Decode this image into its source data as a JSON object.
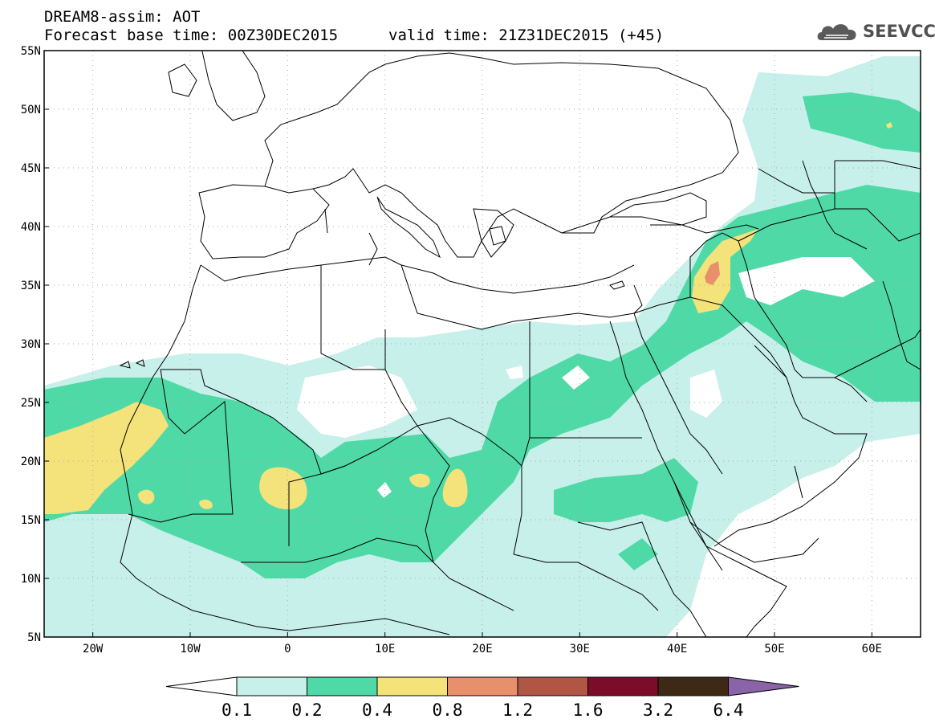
{
  "title": {
    "line1": "DREAM8-assim: AOT",
    "line2": "Forecast base time: 00Z30DEC2015",
    "valid": "valid time: 21Z31DEC2015 (+45)"
  },
  "logo": {
    "text": "SEEVCCC",
    "icon": "cloud-icon"
  },
  "map": {
    "lat_labels": [
      "55N",
      "50N",
      "45N",
      "40N",
      "35N",
      "30N",
      "25N",
      "20N",
      "15N",
      "10N",
      "5N"
    ],
    "lon_labels": [
      "20W",
      "10W",
      "0",
      "10E",
      "20E",
      "30E",
      "40E",
      "50E",
      "60E"
    ],
    "lat_range": [
      5,
      55
    ],
    "lon_range": [
      -25,
      65
    ],
    "grid": "dotted"
  },
  "colorbar": {
    "labels": [
      "0.1",
      "0.2",
      "0.4",
      "0.8",
      "1.2",
      "1.6",
      "3.2",
      "6.4"
    ],
    "colors": [
      "#c8f0ea",
      "#4fd9a7",
      "#f4e27a",
      "#e8906b",
      "#b15545",
      "#7b0c2a",
      "#3e2916",
      "#8a63a8"
    ]
  }
}
